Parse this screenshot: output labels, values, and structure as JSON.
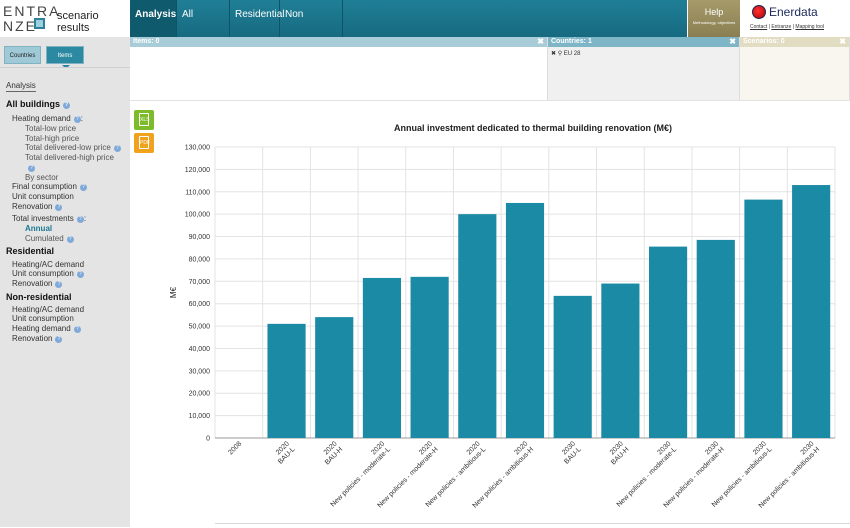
{
  "logo": {
    "line1": "ENTRA",
    "line2": "NZE",
    "subtitle": "scenario results"
  },
  "nav": [
    {
      "label": "Analysis",
      "active": true
    },
    {
      "label": "All buildings",
      "active": false
    },
    {
      "label": "Residential",
      "active": false
    },
    {
      "label": "Non residential",
      "active": false
    }
  ],
  "help": {
    "label": "Help",
    "sub": "Methodology, objectives"
  },
  "brand": {
    "name": "Enerdata",
    "links": [
      "Contact",
      "Entranze",
      "Mapping tool"
    ]
  },
  "left_tabs": {
    "countries": "Countries",
    "items": "Items"
  },
  "sidebar": {
    "analysis_label": "Analysis",
    "items": [
      {
        "text": "All buildings",
        "kind": "head",
        "info": true
      },
      {
        "text": "Heating demand",
        "kind": "item",
        "info": true,
        "suffix": ":"
      },
      {
        "text": "Total-low price",
        "kind": "sub",
        "info": false
      },
      {
        "text": "Total-high price",
        "kind": "sub",
        "info": false
      },
      {
        "text": "Total delivered-low price",
        "kind": "sub",
        "info": true
      },
      {
        "text": "Total delivered-high price",
        "kind": "sub",
        "info": false
      },
      {
        "text": "",
        "kind": "sub",
        "info": true
      },
      {
        "text": "By sector",
        "kind": "sub",
        "info": false
      },
      {
        "text": "Final consumption",
        "kind": "item",
        "info": true
      },
      {
        "text": "Unit consumption",
        "kind": "item",
        "info": false
      },
      {
        "text": "Renovation",
        "kind": "item",
        "info": true
      },
      {
        "text": "Total investments",
        "kind": "item",
        "info": true,
        "suffix": ":"
      },
      {
        "text": "Annual",
        "kind": "active",
        "info": false
      },
      {
        "text": "Cumulated",
        "kind": "sub",
        "info": true
      },
      {
        "text": "Residential",
        "kind": "head",
        "info": false
      },
      {
        "text": "Heating/AC demand",
        "kind": "item",
        "info": false
      },
      {
        "text": "Unit consumption",
        "kind": "item",
        "info": true
      },
      {
        "text": "Renovation",
        "kind": "item",
        "info": true
      },
      {
        "text": "Non-residential",
        "kind": "head",
        "info": false
      },
      {
        "text": "Heating/AC demand",
        "kind": "item",
        "info": false
      },
      {
        "text": "Unit consumption",
        "kind": "item",
        "info": false
      },
      {
        "text": "Heating demand",
        "kind": "item",
        "info": true
      },
      {
        "text": "Renovation",
        "kind": "item",
        "info": true
      }
    ]
  },
  "selection": {
    "items_header": "Items: 0",
    "countries_header": "Countries: 1",
    "scenarios_header": "Scenarios: 0",
    "country": "EU 28"
  },
  "exports": {
    "xls": "XLS",
    "pdf": "PDF"
  },
  "chart_data": {
    "type": "bar",
    "title": "Annual investment dedicated to thermal building renovation (M€)",
    "ylabel": "M€",
    "xlabel": "",
    "ylim": [
      0,
      130000
    ],
    "ytick_step": 10000,
    "grid": true,
    "bar_color": "#1a8aa5",
    "categories": [
      [
        "2008"
      ],
      [
        "2020",
        "BAU-L"
      ],
      [
        "2020",
        "BAU-H"
      ],
      [
        "2020",
        "New policies - moderate-L"
      ],
      [
        "2020",
        "New policies - moderate-H"
      ],
      [
        "2020",
        "New policies - ambitious-L"
      ],
      [
        "2020",
        "New policies - ambitious-H"
      ],
      [
        "2030",
        "BAU-L"
      ],
      [
        "2030",
        "BAU-H"
      ],
      [
        "2030",
        "New policies - moderate-L"
      ],
      [
        "2030",
        "New policies - moderate-H"
      ],
      [
        "2030",
        "New policies - ambitious-L"
      ],
      [
        "2030",
        "New policies - ambitious-H"
      ]
    ],
    "values": [
      0,
      51000,
      54000,
      71500,
      72000,
      100000,
      105000,
      63500,
      69000,
      85500,
      88500,
      106500,
      113000
    ]
  }
}
